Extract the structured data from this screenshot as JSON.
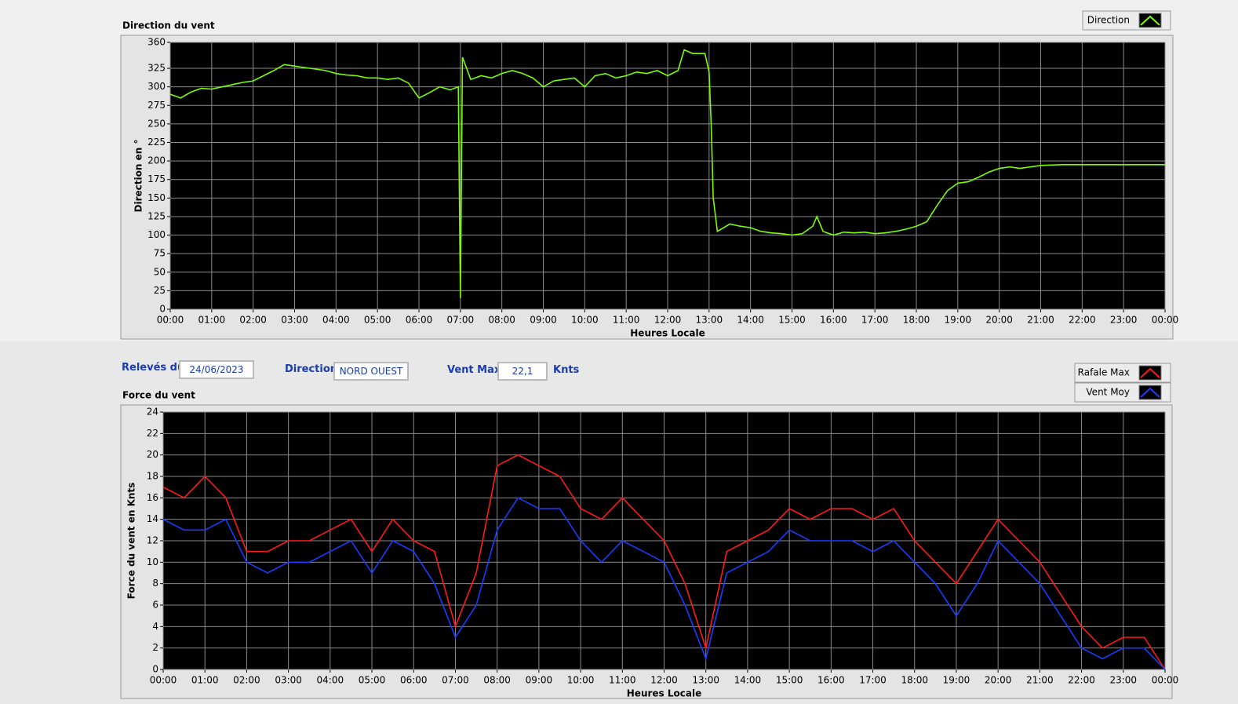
{
  "chart_data": [
    {
      "type": "line",
      "title": "Direction du vent",
      "xlabel": "Heures Locale",
      "ylabel": "Direction en °",
      "xlim": [
        0,
        24
      ],
      "ylim": [
        0,
        360
      ],
      "grid": true,
      "xticks": [
        {
          "value": 0,
          "label": "00:00"
        },
        {
          "value": 1,
          "label": "01:00"
        },
        {
          "value": 2,
          "label": "02:00"
        },
        {
          "value": 3,
          "label": "03:00"
        },
        {
          "value": 4,
          "label": "04:00"
        },
        {
          "value": 5,
          "label": "05:00"
        },
        {
          "value": 6,
          "label": "06:00"
        },
        {
          "value": 7,
          "label": "07:00"
        },
        {
          "value": 8,
          "label": "08:00"
        },
        {
          "value": 9,
          "label": "09:00"
        },
        {
          "value": 10,
          "label": "10:00"
        },
        {
          "value": 11,
          "label": "11:00"
        },
        {
          "value": 12,
          "label": "12:00"
        },
        {
          "value": 13,
          "label": "13:00"
        },
        {
          "value": 14,
          "label": "14:00"
        },
        {
          "value": 15,
          "label": "15:00"
        },
        {
          "value": 16,
          "label": "16:00"
        },
        {
          "value": 17,
          "label": "17:00"
        },
        {
          "value": 18,
          "label": "18:00"
        },
        {
          "value": 19,
          "label": "19:00"
        },
        {
          "value": 20,
          "label": "20:00"
        },
        {
          "value": 21,
          "label": "21:00"
        },
        {
          "value": 22,
          "label": "22:00"
        },
        {
          "value": 23,
          "label": "23:00"
        },
        {
          "value": 24,
          "label": "00:00"
        }
      ],
      "yticks": [
        0,
        25,
        50,
        75,
        100,
        125,
        150,
        175,
        200,
        225,
        250,
        275,
        300,
        325,
        360
      ],
      "x": [
        0,
        0.25,
        0.5,
        0.75,
        1,
        1.25,
        1.5,
        1.75,
        2,
        2.25,
        2.5,
        2.75,
        3,
        3.25,
        3.5,
        3.75,
        4,
        4.25,
        4.5,
        4.75,
        5,
        5.25,
        5.5,
        5.75,
        6,
        6.25,
        6.5,
        6.75,
        6.95,
        7,
        7.05,
        7.25,
        7.5,
        7.75,
        8,
        8.25,
        8.5,
        8.75,
        9,
        9.25,
        9.5,
        9.75,
        10,
        10.25,
        10.5,
        10.75,
        11,
        11.25,
        11.5,
        11.75,
        12,
        12.25,
        12.4,
        12.6,
        12.9,
        13,
        13.05,
        13.1,
        13.2,
        13.5,
        13.75,
        14,
        14.25,
        14.5,
        14.75,
        15,
        15.25,
        15.5,
        15.6,
        15.75,
        16,
        16.25,
        16.5,
        16.75,
        17,
        17.25,
        17.5,
        17.75,
        18,
        18.25,
        18.5,
        18.75,
        19,
        19.25,
        19.5,
        19.75,
        20,
        20.25,
        20.5,
        20.75,
        21,
        21.5,
        22,
        23,
        24
      ],
      "series": [
        {
          "name": "Direction",
          "color": "#7cfc00",
          "values": [
            290,
            285,
            293,
            298,
            297,
            300,
            303,
            306,
            308,
            315,
            322,
            330,
            328,
            326,
            324,
            322,
            318,
            316,
            315,
            312,
            312,
            310,
            312,
            305,
            285,
            292,
            300,
            296,
            300,
            15,
            340,
            310,
            315,
            312,
            318,
            322,
            318,
            312,
            300,
            308,
            310,
            312,
            300,
            315,
            318,
            312,
            315,
            320,
            318,
            322,
            315,
            322,
            350,
            345,
            345,
            320,
            250,
            150,
            105,
            115,
            112,
            110,
            105,
            103,
            102,
            100,
            102,
            112,
            125,
            105,
            100,
            104,
            103,
            104,
            102,
            103,
            105,
            108,
            112,
            118,
            140,
            160,
            170,
            172,
            178,
            185,
            190,
            192,
            190,
            192,
            194,
            195,
            195,
            195,
            195
          ]
        }
      ]
    },
    {
      "type": "line",
      "title": "Force du vent",
      "xlabel": "Heures Locale",
      "ylabel": "Force du vent en Knts",
      "xlim": [
        0,
        24
      ],
      "ylim": [
        0,
        24
      ],
      "grid": true,
      "xticks": [
        {
          "value": 0,
          "label": "00:00"
        },
        {
          "value": 1,
          "label": "01:00"
        },
        {
          "value": 2,
          "label": "02:00"
        },
        {
          "value": 3,
          "label": "03:00"
        },
        {
          "value": 4,
          "label": "04:00"
        },
        {
          "value": 5,
          "label": "05:00"
        },
        {
          "value": 6,
          "label": "06:00"
        },
        {
          "value": 7,
          "label": "07:00"
        },
        {
          "value": 8,
          "label": "08:00"
        },
        {
          "value": 9,
          "label": "09:00"
        },
        {
          "value": 10,
          "label": "10:00"
        },
        {
          "value": 11,
          "label": "11:00"
        },
        {
          "value": 12,
          "label": "12:00"
        },
        {
          "value": 13,
          "label": "13:00"
        },
        {
          "value": 14,
          "label": "14:00"
        },
        {
          "value": 15,
          "label": "15:00"
        },
        {
          "value": 16,
          "label": "16:00"
        },
        {
          "value": 17,
          "label": "17:00"
        },
        {
          "value": 18,
          "label": "18:00"
        },
        {
          "value": 19,
          "label": "19:00"
        },
        {
          "value": 20,
          "label": "20:00"
        },
        {
          "value": 21,
          "label": "21:00"
        },
        {
          "value": 22,
          "label": "22:00"
        },
        {
          "value": 23,
          "label": "23:00"
        },
        {
          "value": 24,
          "label": "00:00"
        }
      ],
      "yticks": [
        0,
        2,
        4,
        6,
        8,
        10,
        12,
        14,
        16,
        18,
        20,
        22,
        24
      ],
      "x": [
        0,
        0.5,
        1,
        1.5,
        2,
        2.5,
        3,
        3.5,
        4,
        4.5,
        5,
        5.5,
        6,
        6.5,
        7,
        7.5,
        8,
        8.5,
        9,
        9.5,
        10,
        10.5,
        11,
        11.5,
        12,
        12.5,
        13,
        13.5,
        14,
        14.5,
        15,
        15.5,
        16,
        16.5,
        17,
        17.5,
        18,
        18.5,
        19,
        19.5,
        20,
        20.5,
        21,
        21.5,
        22,
        22.5,
        23,
        23.5,
        24
      ],
      "series": [
        {
          "name": "Rafale Max",
          "color": "#ff1a1a",
          "values": [
            17,
            16,
            18,
            16,
            11,
            11,
            12,
            12,
            13,
            14,
            11,
            14,
            12,
            11,
            4,
            9,
            19,
            20,
            19,
            18,
            15,
            14,
            16,
            14,
            12,
            8,
            2,
            11,
            12,
            13,
            15,
            14,
            15,
            15,
            14,
            15,
            12,
            10,
            8,
            11,
            14,
            12,
            10,
            7,
            4,
            2,
            3,
            3,
            0
          ]
        },
        {
          "name": "Vent Moy",
          "color": "#1a3cff",
          "values": [
            14,
            13,
            13,
            14,
            10,
            9,
            10,
            10,
            11,
            12,
            9,
            12,
            11,
            8,
            3,
            6,
            13,
            16,
            15,
            15,
            12,
            10,
            12,
            11,
            10,
            6,
            1,
            9,
            10,
            11,
            13,
            12,
            12,
            12,
            11,
            12,
            10,
            8,
            5,
            8,
            12,
            10,
            8,
            5,
            2,
            1,
            2,
            2,
            0
          ]
        }
      ]
    }
  ],
  "form": {
    "date_label": "Relevés du",
    "date": "24/06/2023",
    "direction_label": "Direction",
    "direction": "NORD OUEST",
    "vmax_label": "Vent Max",
    "vmax": "22,1",
    "unit": "Knts"
  }
}
